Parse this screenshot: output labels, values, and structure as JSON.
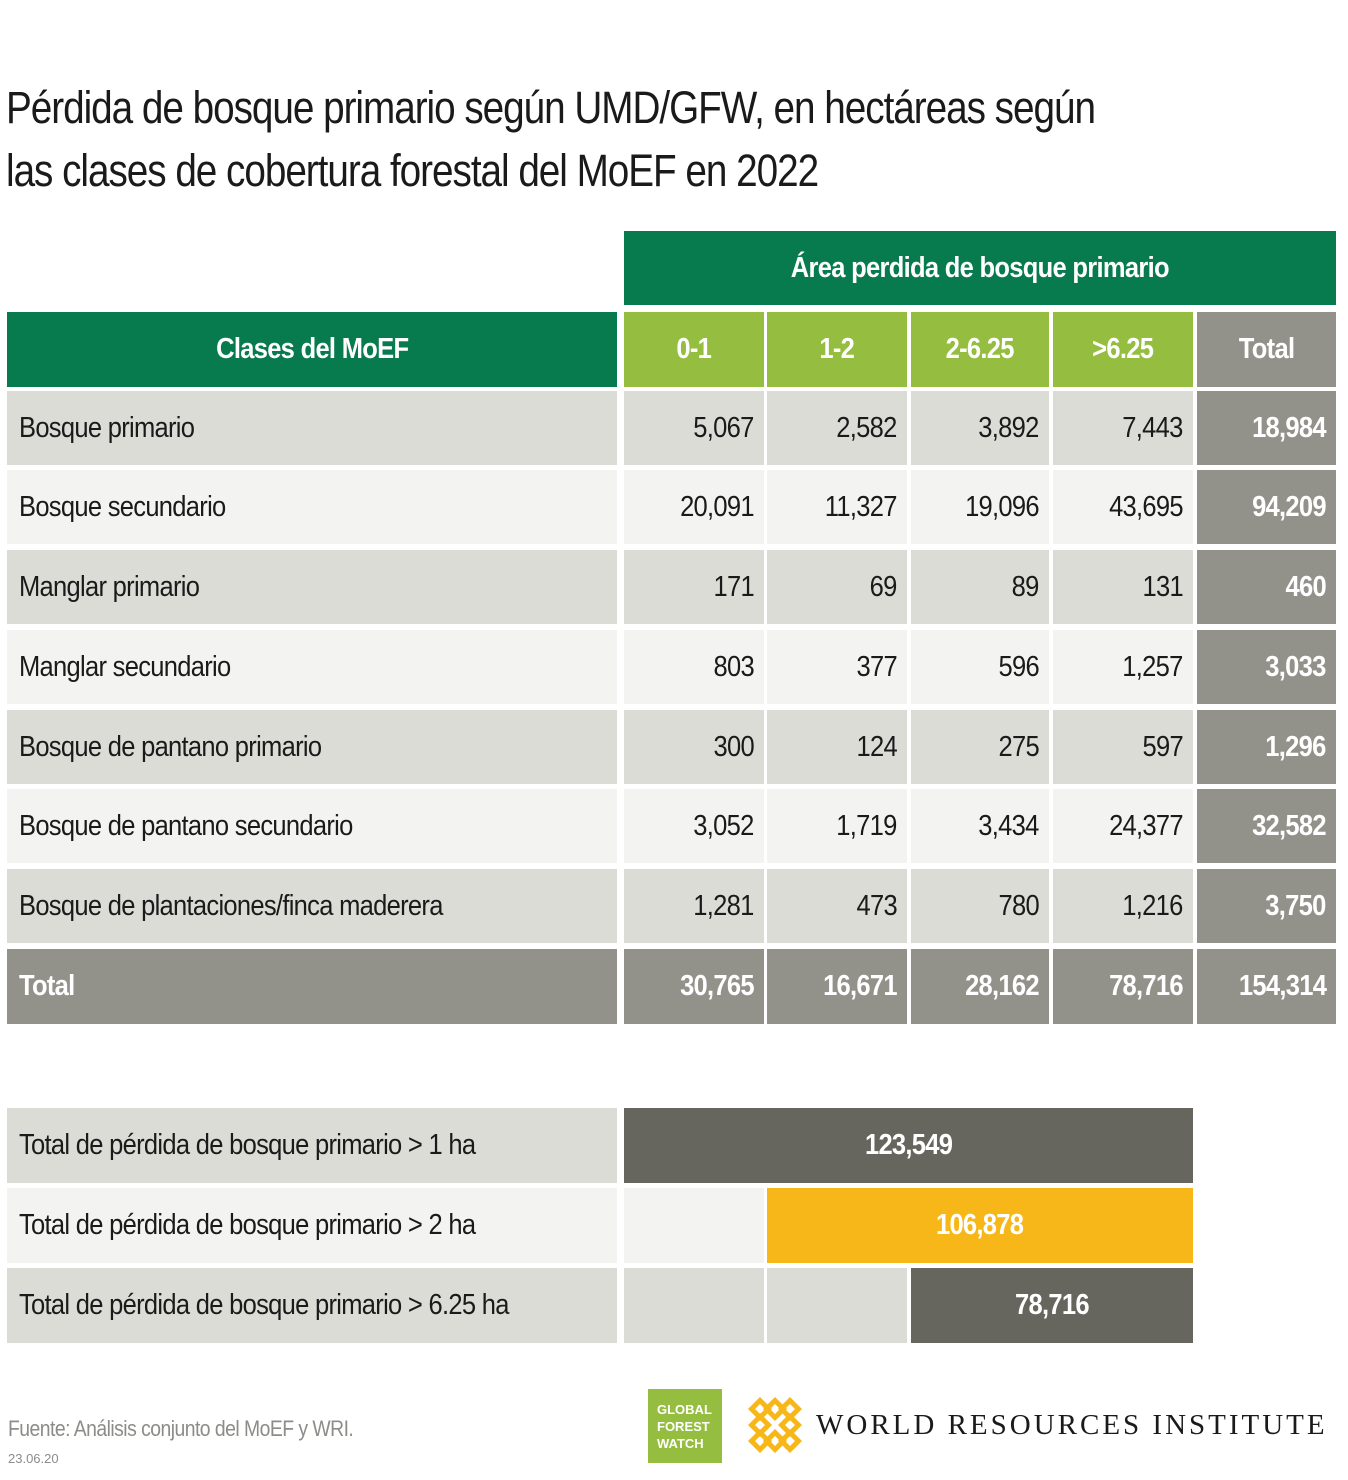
{
  "title": "Pérdida de bosque primario según UMD/GFW, en hectáreas según las clases de cobertura forestal del MoEF en 2022",
  "table": {
    "group_header": "Área perdida de bosque primario",
    "class_header": "Clases del MoEF",
    "columns": [
      "0-1",
      "1-2",
      "2-6.25",
      ">6.25",
      "Total"
    ],
    "rows": [
      {
        "label": "Bosque primario",
        "values": [
          "5,067",
          "2,582",
          "3,892",
          "7,443"
        ],
        "total": "18,984"
      },
      {
        "label": "Bosque secundario",
        "values": [
          "20,091",
          "11,327",
          "19,096",
          "43,695"
        ],
        "total": "94,209"
      },
      {
        "label": "Manglar primario",
        "values": [
          "171",
          "69",
          "89",
          "131"
        ],
        "total": "460"
      },
      {
        "label": "Manglar secundario",
        "values": [
          "803",
          "377",
          "596",
          "1,257"
        ],
        "total": "3,033"
      },
      {
        "label": "Bosque de pantano primario",
        "values": [
          "300",
          "124",
          "275",
          "597"
        ],
        "total": "1,296"
      },
      {
        "label": "Bosque de pantano secundario",
        "values": [
          "3,052",
          "1,719",
          "3,434",
          "24,377"
        ],
        "total": "32,582"
      },
      {
        "label": "Bosque de plantaciones/finca maderera",
        "values": [
          "1,281",
          "473",
          "780",
          "1,216"
        ],
        "total": "3,750"
      }
    ],
    "total_row": {
      "label": "Total",
      "values": [
        "30,765",
        "16,671",
        "28,162",
        "78,716"
      ],
      "total": "154,314"
    }
  },
  "summary": [
    {
      "label": "Total de pérdida de bosque primario > 1 ha",
      "value": "123,549",
      "color": "#66665f"
    },
    {
      "label": "Total de pérdida de bosque primario > 2 ha",
      "value": "106,878",
      "color": "#f8b719"
    },
    {
      "label": "Total de pérdida de bosque primario > 6.25 ha",
      "value": "78,716",
      "color": "#66665f"
    }
  ],
  "footer": {
    "source": "Fuente: Análisis conjunto del MoEF y WRI.",
    "date": "23.06.20",
    "gfw_logo": [
      "GLOBAL",
      "FOREST",
      "WATCH"
    ],
    "wri_name": "WORLD RESOURCES INSTITUTE"
  },
  "colors": {
    "dark_green": "#077b4e",
    "light_green": "#95bd40",
    "grey": "#93928a",
    "dark_grey": "#66665f",
    "yellow": "#f8b719"
  }
}
